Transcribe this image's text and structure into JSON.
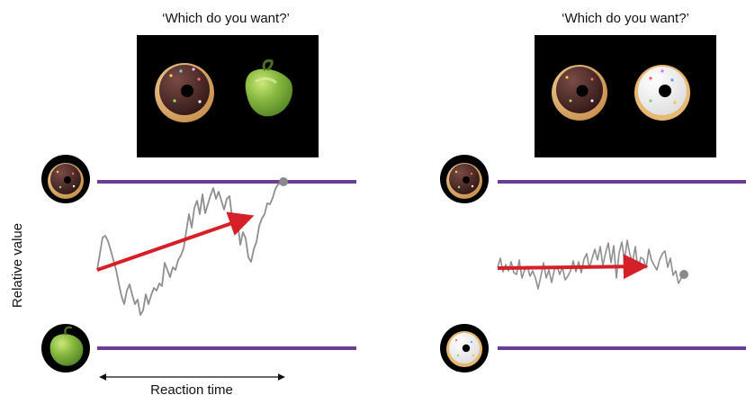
{
  "panels": {
    "left": {
      "question": "‘Which do you want?’",
      "options": {
        "top": "donut-icon",
        "bottom": "green-pepper-icon"
      }
    },
    "right": {
      "question": "‘Which do you want?’",
      "options": {
        "top": "donut-icon",
        "bottom": "white-sprinkle-donut-icon"
      }
    }
  },
  "labels": {
    "y_axis": "Relative value",
    "x_axis": "Reaction time"
  },
  "colors": {
    "bound": "#6a3f93",
    "drift": "#d62027",
    "trace": "#8f8f8f",
    "endpoint": "#8a8a8a",
    "screen": "#000000"
  }
}
